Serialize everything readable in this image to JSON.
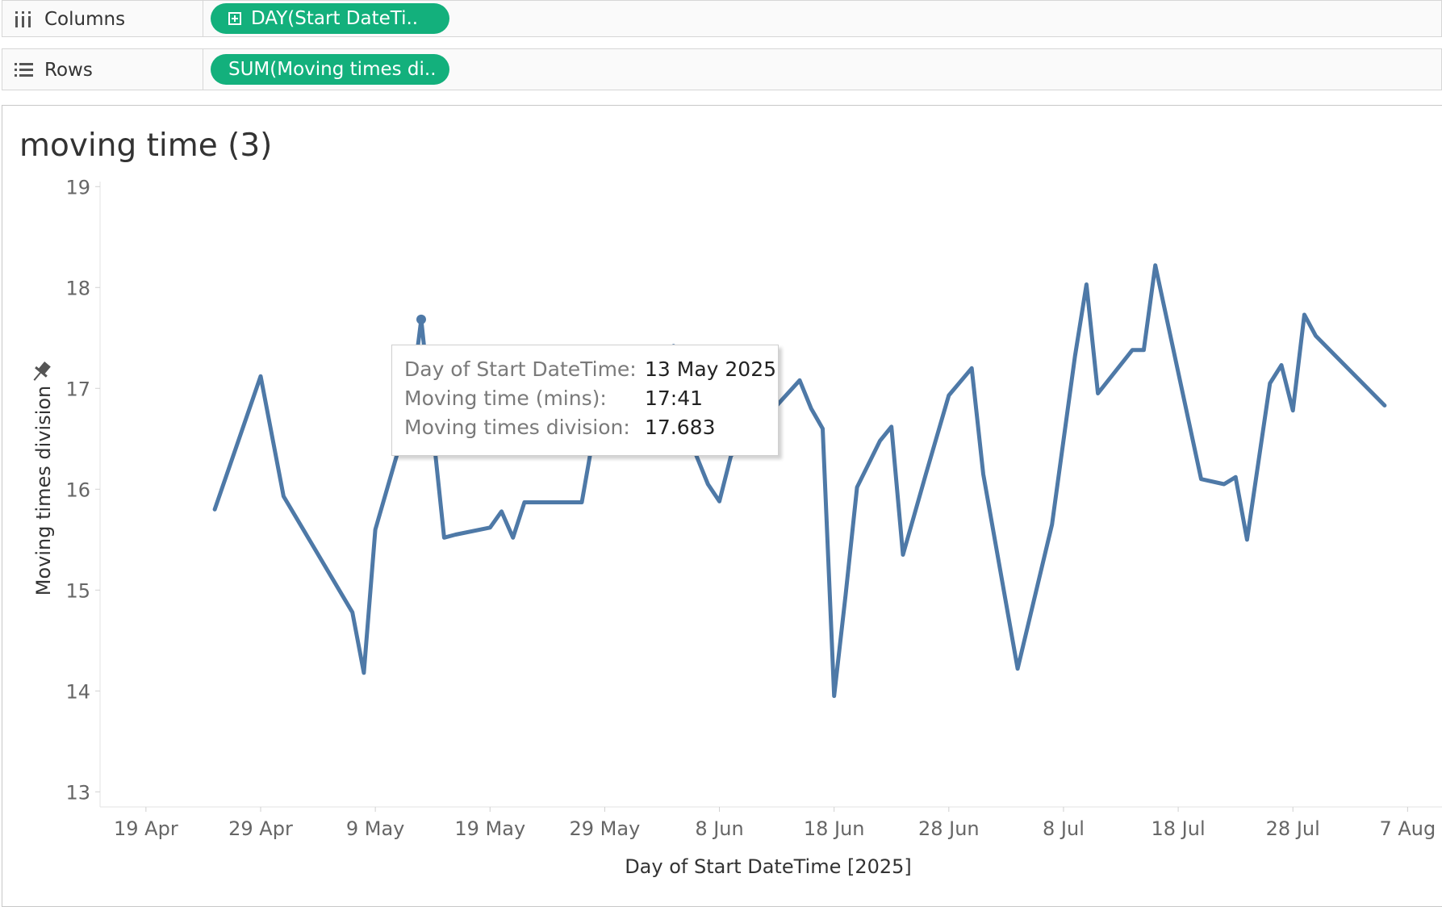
{
  "shelves": {
    "columns": {
      "label": "Columns",
      "pill": "DAY(Start DateTi..",
      "icon": "columns-icon"
    },
    "rows": {
      "label": "Rows",
      "pill": "SUM(Moving times di..",
      "icon": "rows-icon"
    }
  },
  "sheet_title": "moving time (3)",
  "tooltip": {
    "rows": [
      {
        "key": "Day of Start DateTime:",
        "value": "13 May 2025"
      },
      {
        "key": "Moving time (mins):",
        "value": "17:41"
      },
      {
        "key": "Moving times division:",
        "value": "17.683"
      }
    ]
  },
  "colors": {
    "line": "#4e79a7",
    "pill": "#13b07c",
    "axis_text": "#666666"
  },
  "chart_data": {
    "type": "line",
    "title": "",
    "xlabel": "Day of Start DateTime [2025]",
    "ylabel": "Moving times division",
    "ylim": [
      12.85,
      19.05
    ],
    "xlim": [
      "2025-04-15",
      "2025-08-10"
    ],
    "x_ticks": [
      "19 Apr",
      "29 Apr",
      "9 May",
      "19 May",
      "29 May",
      "8 Jun",
      "18 Jun",
      "28 Jun",
      "8 Jul",
      "18 Jul",
      "28 Jul",
      "7 Aug"
    ],
    "x_tick_dates": [
      "2025-04-19",
      "2025-04-29",
      "2025-05-09",
      "2025-05-19",
      "2025-05-29",
      "2025-06-08",
      "2025-06-18",
      "2025-06-28",
      "2025-07-08",
      "2025-07-18",
      "2025-07-28",
      "2025-08-07"
    ],
    "y_ticks": [
      13,
      14,
      15,
      16,
      17,
      18,
      19
    ],
    "grid": false,
    "highlighted_point": {
      "x": "2025-05-13",
      "y": 17.683
    },
    "series": [
      {
        "name": "",
        "x": [
          "2025-04-25",
          "2025-04-29",
          "2025-05-01",
          "2025-05-07",
          "2025-05-08",
          "2025-05-09",
          "2025-05-12",
          "2025-05-13",
          "2025-05-15",
          "2025-05-16",
          "2025-05-19",
          "2025-05-20",
          "2025-05-21",
          "2025-05-22",
          "2025-05-23",
          "2025-05-27",
          "2025-05-28",
          "2025-06-04",
          "2025-06-05",
          "2025-06-06",
          "2025-06-07",
          "2025-06-08",
          "2025-06-09",
          "2025-06-15",
          "2025-06-16",
          "2025-06-17",
          "2025-06-18",
          "2025-06-19",
          "2025-06-20",
          "2025-06-22",
          "2025-06-23",
          "2025-06-24",
          "2025-06-25",
          "2025-06-26",
          "2025-06-28",
          "2025-06-30",
          "2025-07-01",
          "2025-07-04",
          "2025-07-07",
          "2025-07-09",
          "2025-07-10",
          "2025-07-11",
          "2025-07-14",
          "2025-07-15",
          "2025-07-16",
          "2025-07-20",
          "2025-07-22",
          "2025-07-23",
          "2025-07-24",
          "2025-07-26",
          "2025-07-27",
          "2025-07-28",
          "2025-07-29",
          "2025-07-30",
          "2025-08-05"
        ],
        "y": [
          15.8,
          17.12,
          15.93,
          14.78,
          14.18,
          15.6,
          16.78,
          17.683,
          15.52,
          15.55,
          15.62,
          15.78,
          15.52,
          15.87,
          15.87,
          15.87,
          16.52,
          17.42,
          16.62,
          16.33,
          16.05,
          15.88,
          16.33,
          17.08,
          16.8,
          16.6,
          13.95,
          14.95,
          16.02,
          16.48,
          16.62,
          15.35,
          15.75,
          16.15,
          16.93,
          17.2,
          16.15,
          14.22,
          15.65,
          17.32,
          18.03,
          16.95,
          17.38,
          17.38,
          18.22,
          16.1,
          16.05,
          16.12,
          15.5,
          17.05,
          17.23,
          16.78,
          17.73,
          17.52,
          16.83
        ]
      }
    ]
  }
}
